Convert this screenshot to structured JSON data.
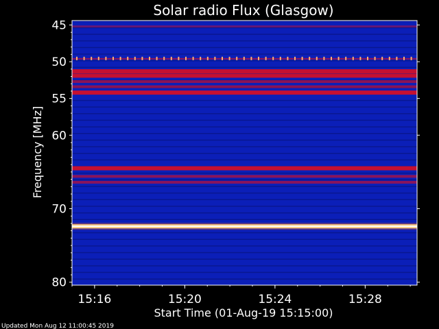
{
  "chart_data": {
    "type": "heatmap",
    "title": "Solar radio Flux (Glasgow)",
    "xlabel": "Start Time (01-Aug-19 15:15:00)",
    "ylabel": "Frequency [MHz]",
    "x_ticks": [
      "15:16",
      "15:20",
      "15:24",
      "15:28"
    ],
    "y_ticks": [
      45,
      50,
      55,
      60,
      70,
      80
    ],
    "x_range_minutes": [
      15.0,
      30.3
    ],
    "ylim": [
      44.4,
      80.4
    ],
    "y_reversed": true,
    "colors": {
      "background_low": "#0b1fb8",
      "background_dark": "#0a1070",
      "band_red": "#d0102a",
      "band_yellow": "#ffffb0",
      "axis": "#ffffff"
    },
    "bands": [
      {
        "freq": 45.2,
        "intensity": "low"
      },
      {
        "freq": 49.6,
        "intensity": "spiky"
      },
      {
        "freq": 51.3,
        "intensity": "high"
      },
      {
        "freq": 51.9,
        "intensity": "high"
      },
      {
        "freq": 52.7,
        "intensity": "medium"
      },
      {
        "freq": 53.4,
        "intensity": "medium"
      },
      {
        "freq": 54.2,
        "intensity": "high"
      },
      {
        "freq": 64.5,
        "intensity": "high"
      },
      {
        "freq": 65.6,
        "intensity": "medium"
      },
      {
        "freq": 66.4,
        "intensity": "medium"
      },
      {
        "freq": 72.4,
        "intensity": "saturated"
      }
    ]
  },
  "footer": {
    "updated": "Updated Mon Aug 12 11:00:45 2019"
  }
}
